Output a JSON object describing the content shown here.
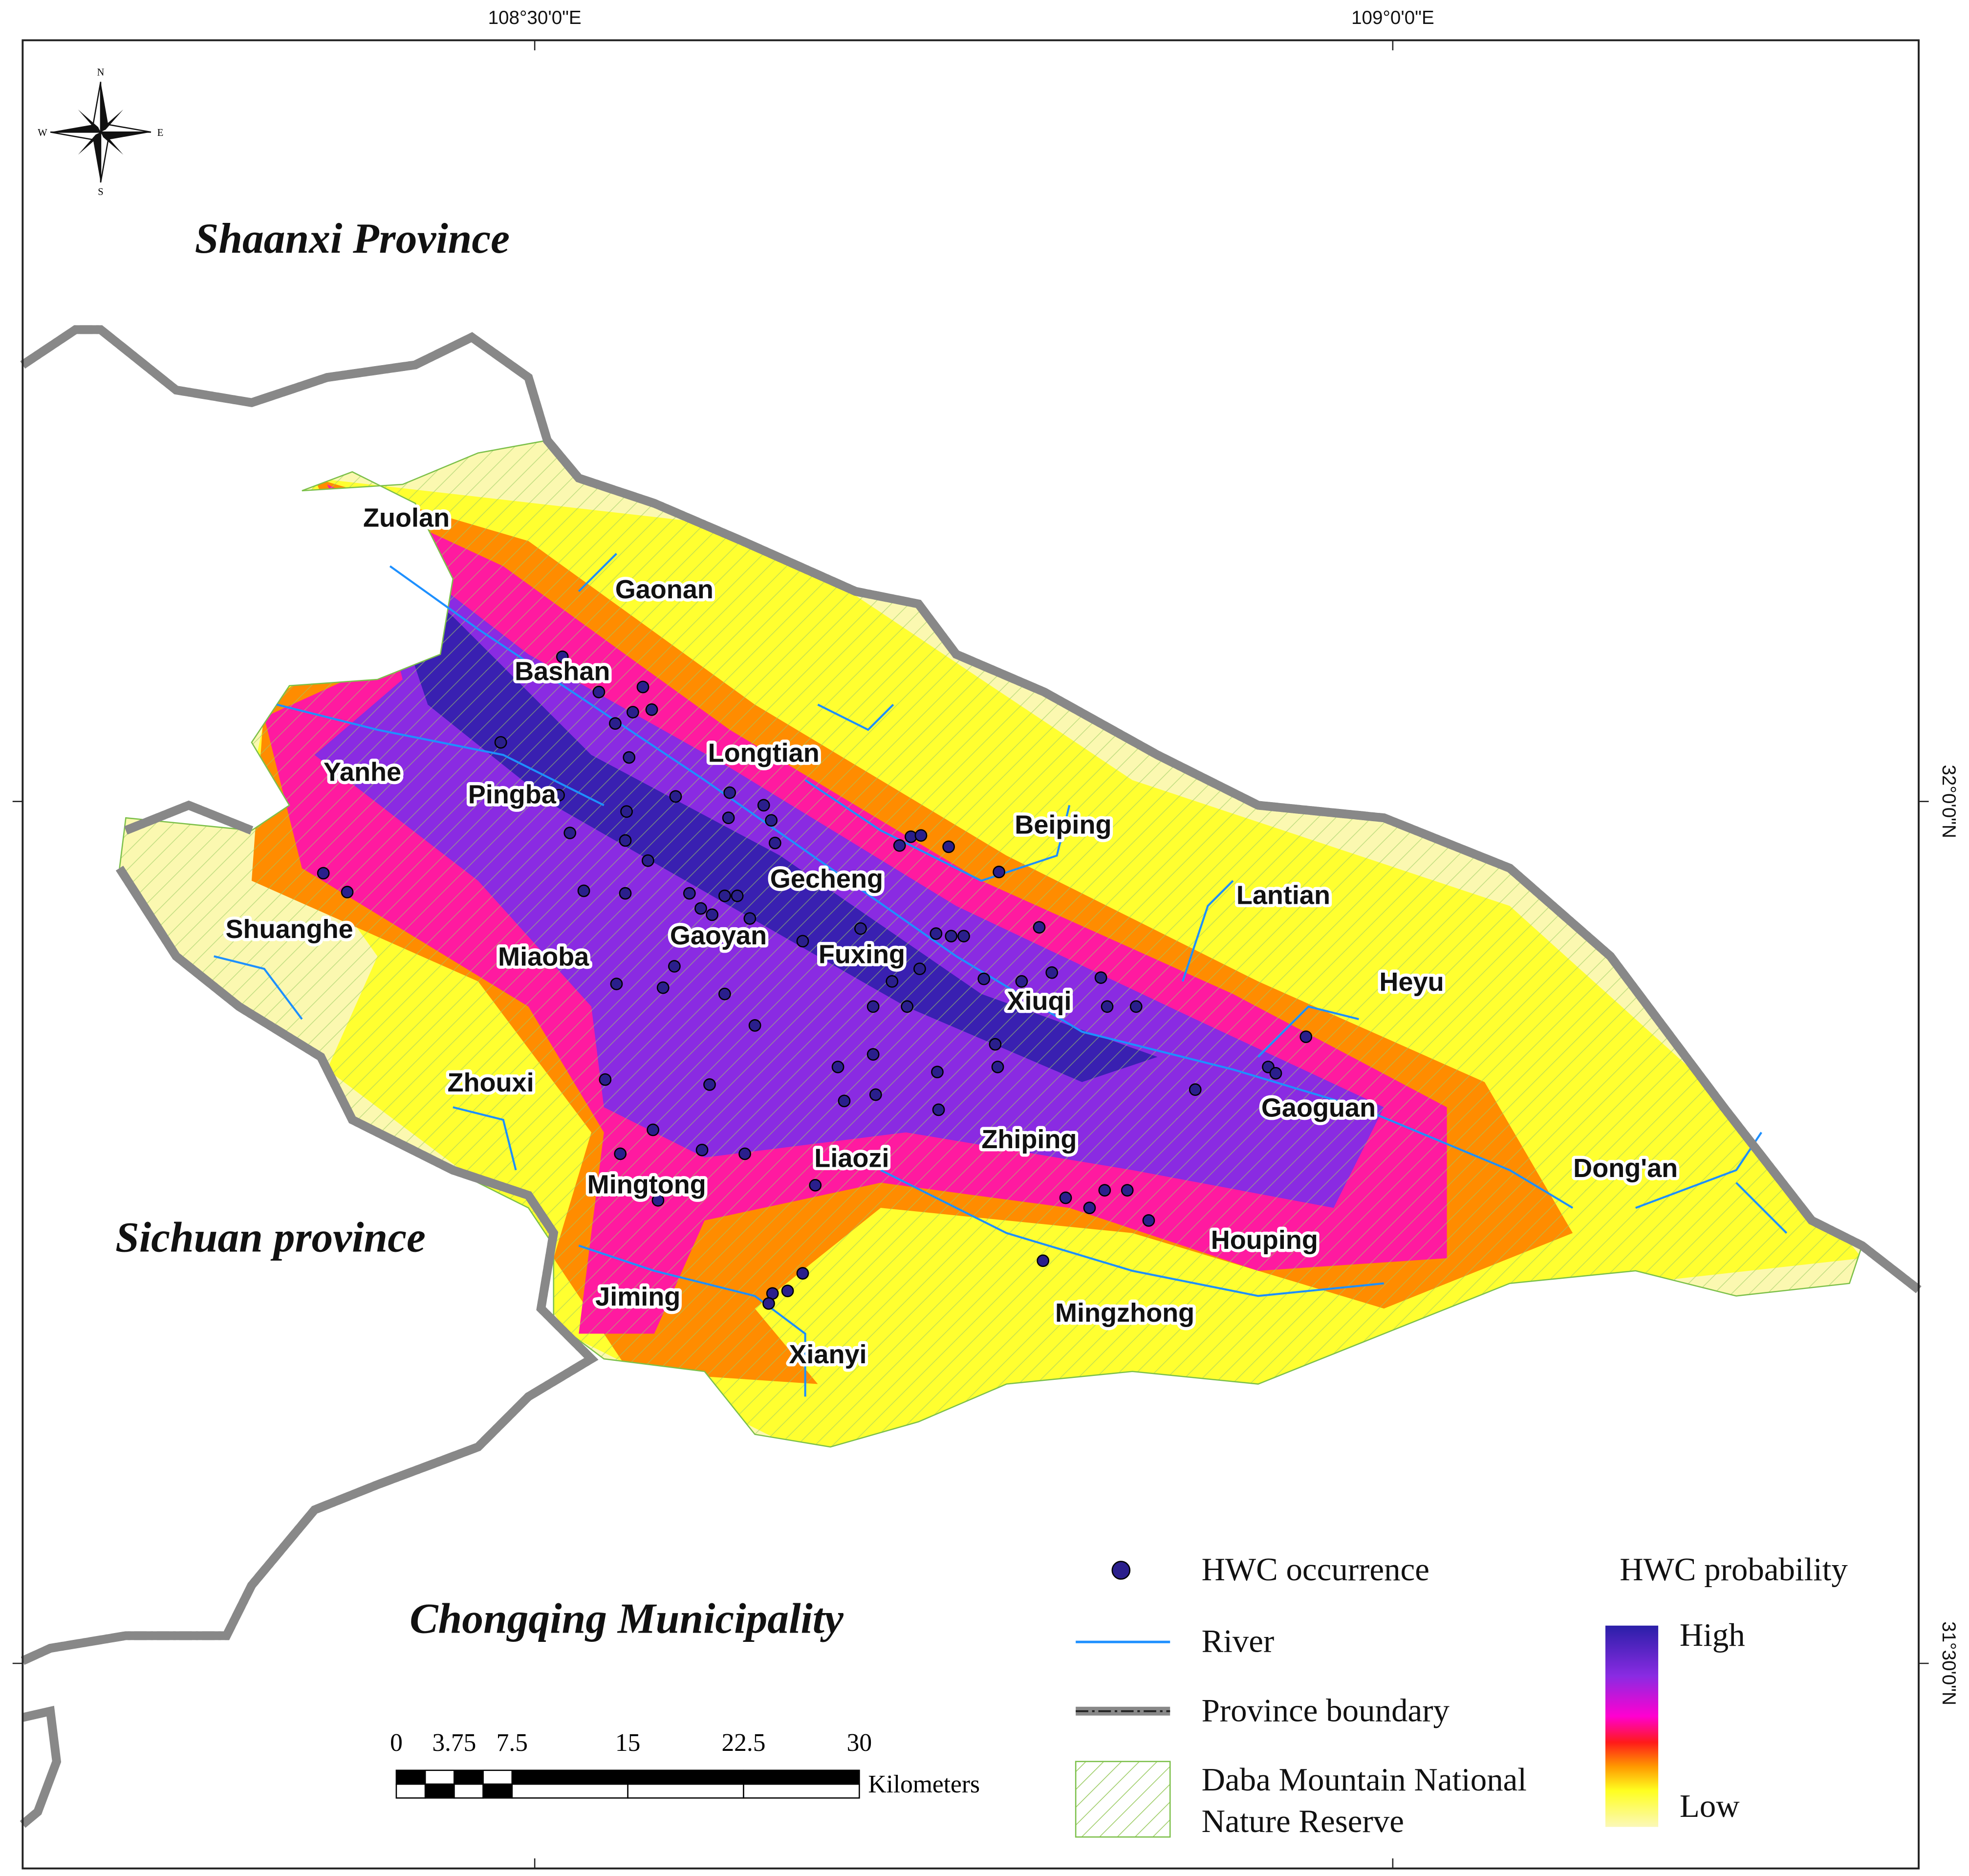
{
  "graticule": {
    "longitudes": [
      "108°30'0\"E",
      "109°0'0\"E"
    ],
    "latitudes": [
      "32°0'0\"N",
      "31°30'0\"N"
    ]
  },
  "compass": {
    "n": "N",
    "s": "S",
    "e": "E",
    "w": "W"
  },
  "regions": [
    "Shaanxi Province",
    "Sichuan province",
    "Chongqing Municipality"
  ],
  "towns": [
    "Zuolan",
    "Gaonan",
    "Bashan",
    "Longtian",
    "Yanhe",
    "Pingba",
    "Beiping",
    "Gecheng",
    "Lantian",
    "Shuanghe",
    "Miaoba",
    "Gaoyan",
    "Fuxing",
    "Heyu",
    "Xiuqi",
    "Zhouxi",
    "Gaoguan",
    "Zhiping",
    "Liaozi",
    "Dong'an",
    "Mingtong",
    "Houping",
    "Jiming",
    "Mingzhong",
    "Xianyi"
  ],
  "legend": {
    "occurrence": "HWC occurrence",
    "river": "River",
    "boundary": "Province boundary",
    "reserve": [
      "Daba Mountain National",
      "Nature Reserve"
    ],
    "probability": {
      "title": "HWC probability",
      "high": "High",
      "low": "Low"
    }
  },
  "scale_bar": {
    "ticks": [
      0,
      3.75,
      7.5,
      15,
      22.5,
      30
    ],
    "unit": "Kilometers"
  }
}
